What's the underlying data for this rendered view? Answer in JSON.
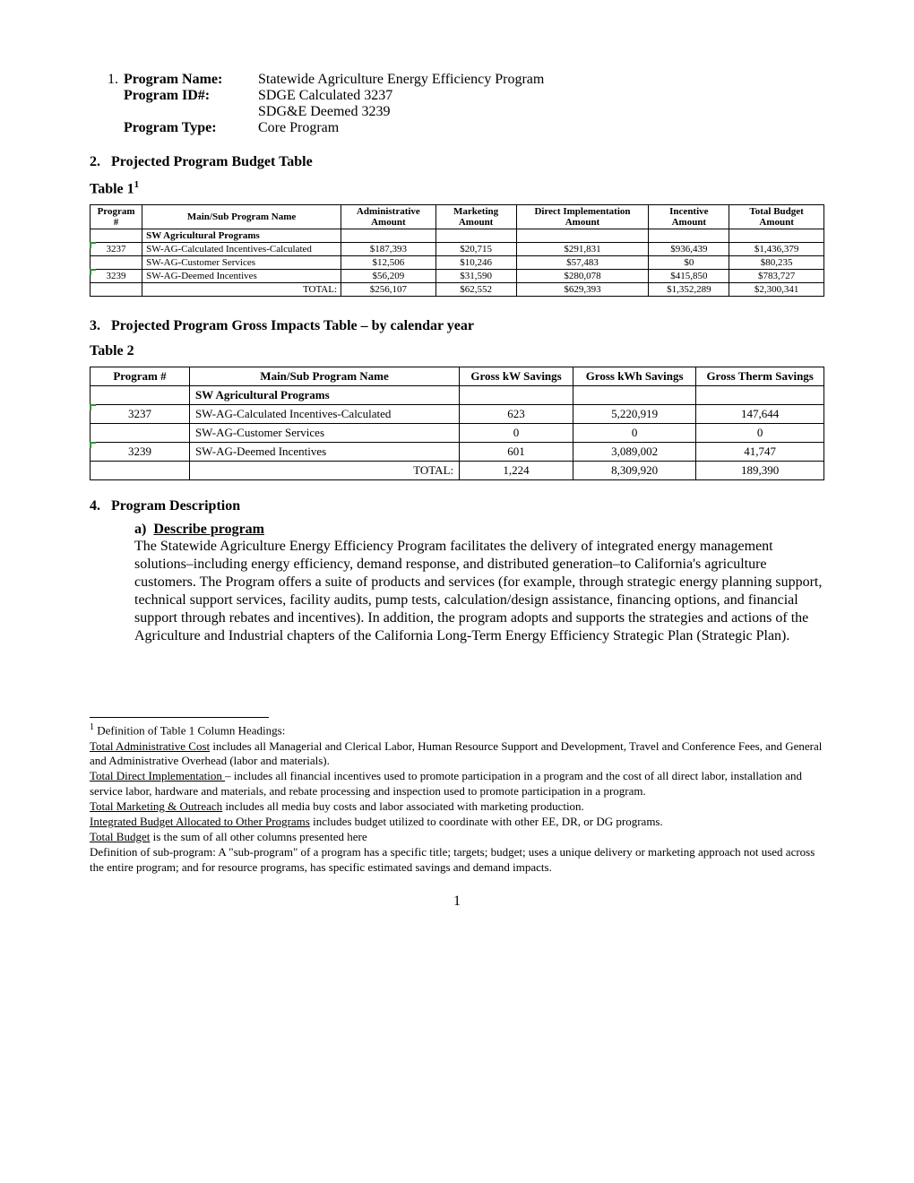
{
  "header": {
    "num": "1.",
    "programNameLabel": "Program Name:",
    "programName": "Statewide Agriculture Energy Efficiency Program",
    "programIdLabel": "Program ID#:",
    "programId1": "SDGE Calculated 3237",
    "programId2": "SDG&E Deemed 3239",
    "programTypeLabel": "Program Type:",
    "programType": "Core Program"
  },
  "section2": {
    "num": "2.",
    "title": "Projected Program Budget Table"
  },
  "table1Label": "Table 1",
  "table1Sup": "1",
  "table1": {
    "columns": [
      "Program #",
      "Main/Sub Program Name",
      "Administrative Amount",
      "Marketing Amount",
      "Direct Implementation Amount",
      "Incentive Amount",
      "Total Budget Amount"
    ],
    "groupRow": "SW Agricultural Programs",
    "rows": [
      {
        "prog": "3237",
        "name": "SW-AG-Calculated Incentives-Calculated",
        "admin": "$187,393",
        "mkt": "$20,715",
        "direct": "$291,831",
        "inc": "$936,439",
        "total": "$1,436,379"
      },
      {
        "prog": "",
        "name": "SW-AG-Customer Services",
        "admin": "$12,506",
        "mkt": "$10,246",
        "direct": "$57,483",
        "inc": "$0",
        "total": "$80,235"
      },
      {
        "prog": "3239",
        "name": "SW-AG-Deemed Incentives",
        "admin": "$56,209",
        "mkt": "$31,590",
        "direct": "$280,078",
        "inc": "$415,850",
        "total": "$783,727"
      }
    ],
    "totalLabel": "TOTAL:",
    "totals": {
      "admin": "$256,107",
      "mkt": "$62,552",
      "direct": "$629,393",
      "inc": "$1,352,289",
      "total": "$2,300,341"
    },
    "col_widths": [
      "55px",
      "210px",
      "100px",
      "85px",
      "140px",
      "85px",
      "100px"
    ]
  },
  "section3": {
    "num": "3.",
    "title": "Projected Program Gross Impacts Table –  by calendar year"
  },
  "table2Label": "Table 2",
  "table2": {
    "columns": [
      "Program #",
      "Main/Sub Program Name",
      "Gross kW Savings",
      "Gross kWh Savings",
      "Gross Therm Savings"
    ],
    "groupRow": "SW Agricultural Programs",
    "rows": [
      {
        "prog": "3237",
        "name": "SW-AG-Calculated Incentives-Calculated",
        "kw": "623",
        "kwh": "5,220,919",
        "therm": "147,644"
      },
      {
        "prog": "",
        "name": "SW-AG-Customer Services",
        "kw": "0",
        "kwh": "0",
        "therm": "0"
      },
      {
        "prog": "3239",
        "name": "SW-AG-Deemed Incentives",
        "kw": "601",
        "kwh": "3,089,002",
        "therm": "41,747"
      }
    ],
    "totalLabel": "TOTAL:",
    "totals": {
      "kw": "1,224",
      "kwh": "8,309,920",
      "therm": "189,390"
    },
    "col_widths": [
      "105px",
      "285px",
      "120px",
      "130px",
      "135px"
    ]
  },
  "section4": {
    "num": "4.",
    "title": "Program Description",
    "subLetter": "a)",
    "subTitle": "Describe program",
    "body": "The Statewide Agriculture Energy Efficiency Program facilitates the delivery of integrated energy management solutions–including energy efficiency, demand response, and distributed generation–to California's agriculture customers.  The Program offers a suite of products and services (for example, through strategic energy planning support, technical support services, facility audits, pump tests, calculation/design assistance, financing options, and financial support through rebates and incentives). In addition, the program adopts and supports the strategies and actions of the Agriculture and Industrial chapters of the California Long-Term Energy Efficiency Strategic Plan (Strategic Plan)."
  },
  "footnotes": {
    "lead": "Definition of Table 1 Column Headings:",
    "items": [
      {
        "term": "Total Administrative Cost",
        "text": " includes all Managerial and Clerical Labor, Human Resource Support and Development, Travel and Conference Fees, and General and Administrative Overhead (labor and materials)."
      },
      {
        "term": "Total Direct Implementation ",
        "text": "– includes all financial incentives used to promote participation in a program and the cost of all direct labor, installation and service labor, hardware and materials, and rebate processing and inspection used to promote participation in a program."
      },
      {
        "term": "Total Marketing & Outreach",
        "text": " includes all media buy costs and labor associated with marketing production."
      },
      {
        "term": "Integrated Budget Allocated to Other Programs",
        "text": " includes budget utilized to coordinate with other EE, DR, or DG programs."
      },
      {
        "term": "Total Budget",
        "text": " is the sum of all other columns presented here"
      }
    ],
    "subprog": "Definition of sub-program: A \"sub-program\" of a program has a specific title; targets; budget; uses a unique delivery or marketing approach not used across the entire program; and for resource programs, has specific estimated savings and demand impacts."
  },
  "pageNumber": "1"
}
